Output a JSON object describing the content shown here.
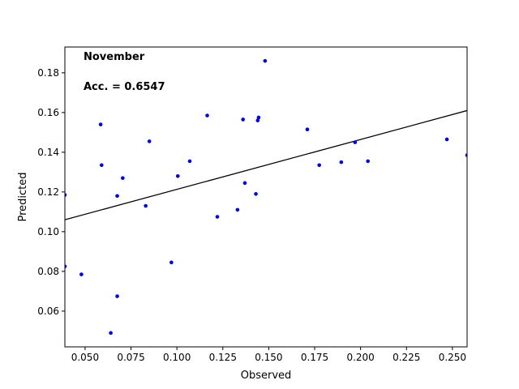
{
  "chart_data": {
    "type": "scatter",
    "xlabel": "Observed",
    "ylabel": "Predicted",
    "annotations": [
      "November",
      "Acc. = 0.6547"
    ],
    "xlim": [
      0.039,
      0.258
    ],
    "ylim": [
      0.042,
      0.193
    ],
    "xticks": [
      0.05,
      0.075,
      0.1,
      0.125,
      0.15,
      0.175,
      0.2,
      0.225,
      0.25
    ],
    "xtick_labels": [
      "0.050",
      "0.075",
      "0.100",
      "0.125",
      "0.150",
      "0.175",
      "0.200",
      "0.225",
      "0.250"
    ],
    "yticks": [
      0.06,
      0.08,
      0.1,
      0.12,
      0.14,
      0.16,
      0.18
    ],
    "ytick_labels": [
      "0.06",
      "0.08",
      "0.10",
      "0.12",
      "0.14",
      "0.16",
      "0.18"
    ],
    "point_color": "#0000dd",
    "line_color": "#000000",
    "grid": false,
    "points": [
      {
        "x": 0.039,
        "y": 0.1185
      },
      {
        "x": 0.039,
        "y": 0.0825
      },
      {
        "x": 0.048,
        "y": 0.0785
      },
      {
        "x": 0.0585,
        "y": 0.154
      },
      {
        "x": 0.059,
        "y": 0.1335
      },
      {
        "x": 0.064,
        "y": 0.049
      },
      {
        "x": 0.0675,
        "y": 0.118
      },
      {
        "x": 0.0675,
        "y": 0.0675
      },
      {
        "x": 0.0705,
        "y": 0.127
      },
      {
        "x": 0.083,
        "y": 0.113
      },
      {
        "x": 0.085,
        "y": 0.1455
      },
      {
        "x": 0.097,
        "y": 0.0845
      },
      {
        "x": 0.1005,
        "y": 0.128
      },
      {
        "x": 0.107,
        "y": 0.1355
      },
      {
        "x": 0.1165,
        "y": 0.1585
      },
      {
        "x": 0.122,
        "y": 0.1075
      },
      {
        "x": 0.133,
        "y": 0.111
      },
      {
        "x": 0.136,
        "y": 0.1565
      },
      {
        "x": 0.137,
        "y": 0.1245
      },
      {
        "x": 0.143,
        "y": 0.119
      },
      {
        "x": 0.144,
        "y": 0.156
      },
      {
        "x": 0.1445,
        "y": 0.1575
      },
      {
        "x": 0.148,
        "y": 0.186
      },
      {
        "x": 0.171,
        "y": 0.1515
      },
      {
        "x": 0.1775,
        "y": 0.1335
      },
      {
        "x": 0.1895,
        "y": 0.135
      },
      {
        "x": 0.197,
        "y": 0.145
      },
      {
        "x": 0.204,
        "y": 0.1355
      },
      {
        "x": 0.247,
        "y": 0.1465
      },
      {
        "x": 0.258,
        "y": 0.1385
      }
    ],
    "fit_line": {
      "x": [
        0.039,
        0.258
      ],
      "y": [
        0.106,
        0.161
      ]
    }
  }
}
